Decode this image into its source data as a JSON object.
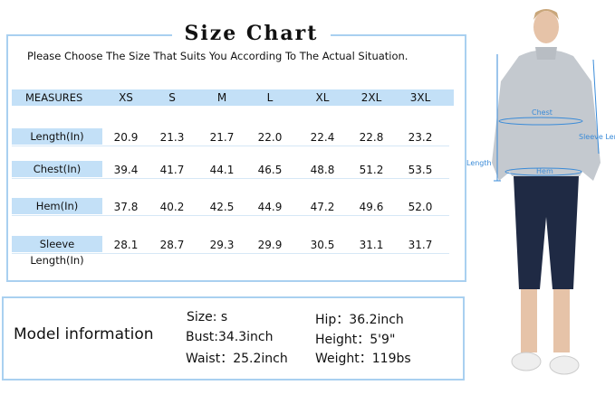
{
  "title": "Size Chart",
  "subtitle": "Please Choose The Size That Suits You According To The Actual Situation.",
  "table": {
    "header": [
      "MEASURES",
      "XS",
      "S",
      "M",
      "L",
      "XL",
      "2XL",
      "3XL"
    ],
    "rows": [
      {
        "label": "Length(In)",
        "values": [
          "20.9",
          "21.3",
          "21.7",
          "22.0",
          "22.4",
          "22.8",
          "23.2"
        ]
      },
      {
        "label": "Chest(In)",
        "values": [
          "39.4",
          "41.7",
          "44.1",
          "46.5",
          "48.8",
          "51.2",
          "53.5"
        ]
      },
      {
        "label": "Hem(In)",
        "values": [
          "37.8",
          "40.2",
          "42.5",
          "44.9",
          "47.2",
          "49.6",
          "52.0"
        ]
      },
      {
        "label": "Sleeve Length(In)",
        "values": [
          "28.1",
          "28.7",
          "29.3",
          "29.9",
          "30.5",
          "31.1",
          "31.7"
        ]
      }
    ]
  },
  "model": {
    "heading": "Model information",
    "size": "Size: s",
    "bust": "Bust:34.3inch",
    "waist": "Waist：25.2inch",
    "hip": "Hip：36.2inch",
    "height": "Height：5'9\"",
    "weight": "Weight：119bs"
  },
  "figure": {
    "chest": "Chest",
    "sleeve": "Sleeve Length",
    "length": "Length",
    "hem": "Hem"
  },
  "colors": {
    "accent": "#a9d0f0",
    "band": "#c3e0f7",
    "annotation": "#3a8bd8"
  }
}
